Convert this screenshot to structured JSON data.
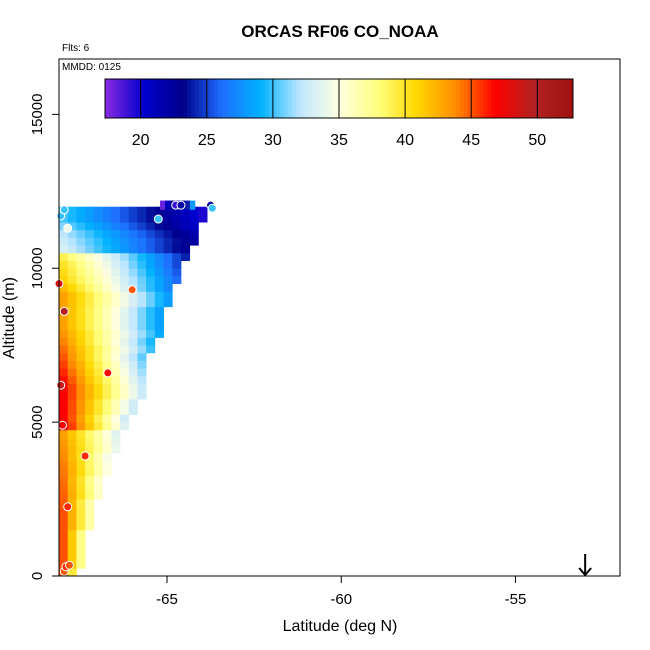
{
  "chart_data": {
    "type": "heatmap",
    "title": "ORCAS RF06 CO_NOAA",
    "subtitle_flights": "Flts: 6",
    "subtitle_date": "MMDD: 0125",
    "xlabel": "Latitude (deg N)",
    "ylabel": "Altitude (m)",
    "xlim": [
      -68.1,
      -52.0
    ],
    "ylim": [
      0,
      16800
    ],
    "x_ticks": [
      -65,
      -60,
      -55
    ],
    "x_tick_labels": [
      "-65",
      "-60",
      "-55"
    ],
    "y_ticks": [
      0,
      5000,
      10000,
      15000
    ],
    "y_tick_labels": [
      "0",
      "5000",
      "10000",
      "15000"
    ],
    "colorbar": {
      "range": [
        17.3,
        52.7
      ],
      "ticks": [
        20,
        25,
        30,
        35,
        40,
        45,
        50
      ],
      "tick_labels": [
        "20",
        "25",
        "30",
        "35",
        "40",
        "45",
        "50"
      ],
      "colors": [
        "#8a2be2",
        "#0000cd",
        "#00008b",
        "#1e6fff",
        "#00b2ff",
        "#bfe6ff",
        "#ffffe0",
        "#ffff7f",
        "#ffd700",
        "#ff8c00",
        "#ff0000",
        "#b22222",
        "#a01010"
      ]
    },
    "profile_cells": {
      "lat_start": -68.1,
      "lat_step": 0.25,
      "alt_step": 250,
      "note": "CO (ppb) per altitude band; each band spans lat_start to lat_start + n*lat_step",
      "bands": [
        {
          "alt": 0,
          "width": 0.6,
          "value": 43
        },
        {
          "alt": 2000,
          "width": 1.0,
          "value": 43
        },
        {
          "alt": 3500,
          "width": 1.5,
          "value": 42
        },
        {
          "alt": 4500,
          "width": 1.8,
          "value": 41
        },
        {
          "alt": 5000,
          "width": 2.0,
          "value": 40
        },
        {
          "alt": 6000,
          "width": 2.5,
          "value": 40
        },
        {
          "alt": 7000,
          "width": 2.6,
          "value": 38
        },
        {
          "alt": 7500,
          "width": 2.8,
          "value": 37
        },
        {
          "alt": 8000,
          "width": 3.0,
          "value": 36
        },
        {
          "alt": 9000,
          "width": 3.2,
          "value": 36
        },
        {
          "alt": 9500,
          "width": 3.4,
          "value": 34
        },
        {
          "alt": 10000,
          "width": 3.6,
          "value": 33
        },
        {
          "alt": 10500,
          "width": 3.8,
          "value": 31
        },
        {
          "alt": 11000,
          "width": 4.0,
          "value": 30
        },
        {
          "alt": 11500,
          "width": 4.2,
          "value": 28
        }
      ],
      "top_row": {
        "alt_min": 11900,
        "alt_max": 12200,
        "lat_min": -65.2,
        "lat_max": -64.2,
        "values": [
          18,
          21,
          23,
          24,
          21,
          24,
          28
        ]
      }
    },
    "flight_points": [
      {
        "lat": -67.95,
        "alt": 150,
        "value": 45
      },
      {
        "lat": -67.9,
        "alt": 300,
        "value": 46
      },
      {
        "lat": -67.8,
        "alt": 350,
        "value": 45
      },
      {
        "lat": -67.85,
        "alt": 2250,
        "value": 46
      },
      {
        "lat": -67.35,
        "alt": 3900,
        "value": 46
      },
      {
        "lat": -68.0,
        "alt": 4900,
        "value": 47
      },
      {
        "lat": -68.05,
        "alt": 6200,
        "value": 49
      },
      {
        "lat": -66.7,
        "alt": 6600,
        "value": 47
      },
      {
        "lat": -67.95,
        "alt": 8600,
        "value": 50
      },
      {
        "lat": -66.0,
        "alt": 9300,
        "value": 45
      },
      {
        "lat": -68.1,
        "alt": 9500,
        "value": 48
      },
      {
        "lat": -67.85,
        "alt": 11300,
        "value": 34
      },
      {
        "lat": -65.25,
        "alt": 11600,
        "value": 30
      },
      {
        "lat": -68.05,
        "alt": 11700,
        "value": 30
      },
      {
        "lat": -67.95,
        "alt": 11900,
        "value": 30
      },
      {
        "lat": -64.75,
        "alt": 12050,
        "value": 19
      },
      {
        "lat": -64.6,
        "alt": 12050,
        "value": 22
      },
      {
        "lat": -63.75,
        "alt": 12050,
        "value": 22
      },
      {
        "lat": -63.7,
        "alt": 11950,
        "value": 30
      }
    ],
    "marker": {
      "type": "arrow-down",
      "lat": -53.0,
      "alt": 0
    }
  }
}
